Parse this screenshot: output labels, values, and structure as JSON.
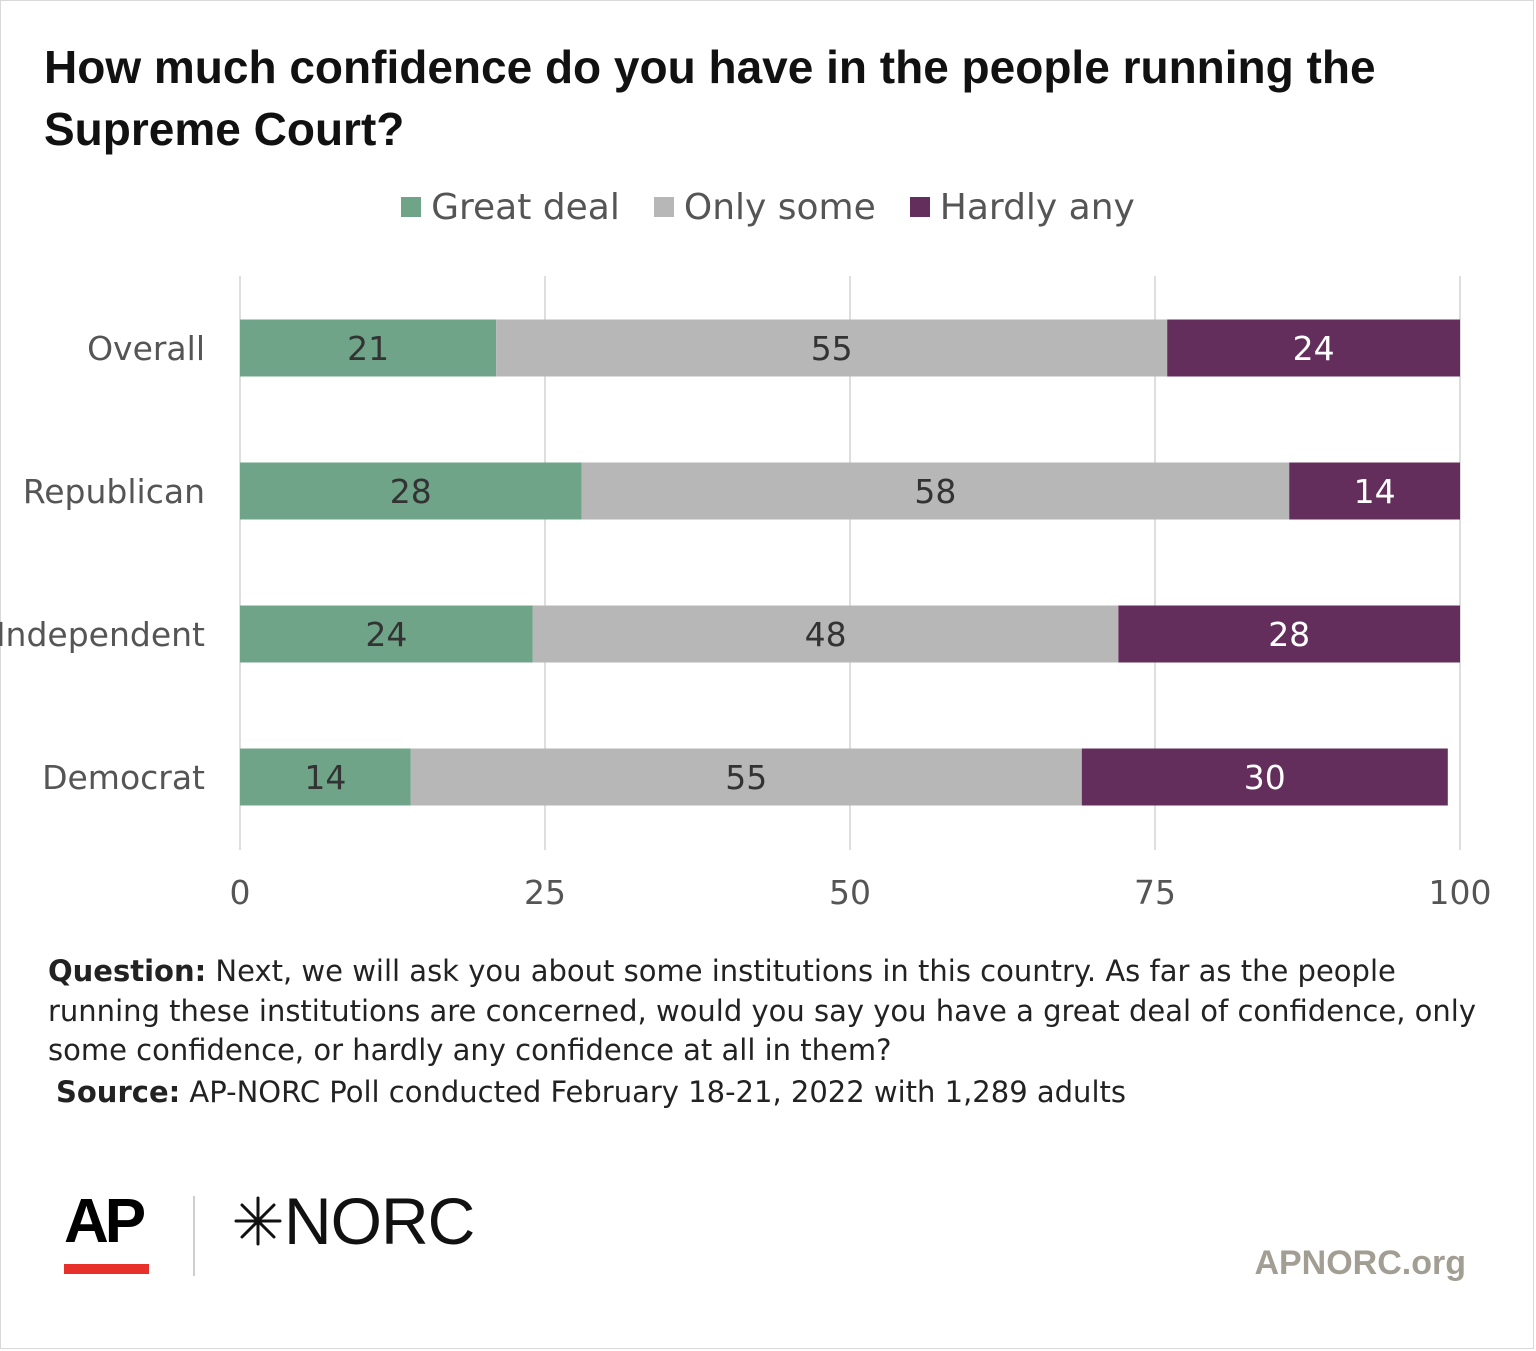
{
  "title": "How much confidence do you have in the people running the Supreme Court?",
  "legend": [
    {
      "label": "Great deal",
      "color": "#70a489"
    },
    {
      "label": "Only some",
      "color": "#b7b7b7"
    },
    {
      "label": "Hardly any",
      "color": "#642e5c"
    }
  ],
  "chart_data": {
    "type": "bar",
    "orientation": "horizontal",
    "stacked": true,
    "categories": [
      "Overall",
      "Republican",
      "Independent",
      "Democrat"
    ],
    "series": [
      {
        "name": "Great deal",
        "values": [
          21,
          28,
          24,
          14
        ],
        "color": "#70a489"
      },
      {
        "name": "Only some",
        "values": [
          55,
          58,
          48,
          55
        ],
        "color": "#b7b7b7"
      },
      {
        "name": "Hardly any",
        "values": [
          24,
          14,
          28,
          30
        ],
        "color": "#642e5c"
      }
    ],
    "xlim": [
      0,
      100
    ],
    "xticks": [
      "0",
      "25",
      "50",
      "75",
      "100"
    ],
    "grid": true,
    "legend_position": "top"
  },
  "notes": {
    "question_label": "Question:",
    "question_text": " Next, we will ask you about some institutions in this country. As far as the people running these institutions are concerned, would you say you have a great deal of confidence, only some confidence, or hardly any confidence at all in them?",
    "source_label": "Source:",
    "source_text": " AP-NORC Poll conducted February 18-21, 2022 with 1,289 adults"
  },
  "branding": {
    "ap": "AP",
    "norc": "NORC",
    "site": "APNORC.org",
    "ap_accent": "#e8302b",
    "site_color": "#a39e93"
  }
}
